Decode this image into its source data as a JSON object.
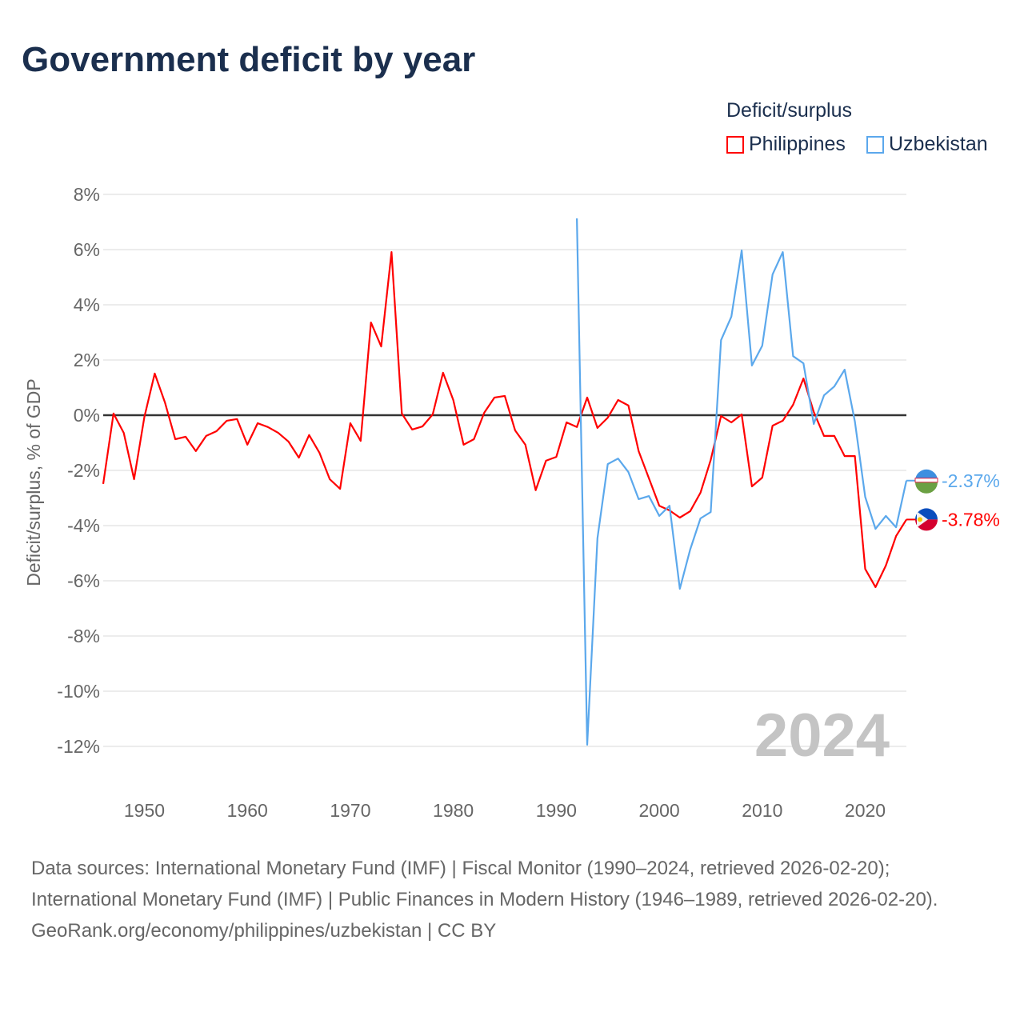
{
  "title": "Government deficit by year",
  "legend": {
    "title": "Deficit/surplus",
    "items": [
      {
        "name": "Philippines",
        "color": "#ff0000"
      },
      {
        "name": "Uzbekistan",
        "color": "#5ba8ec"
      }
    ]
  },
  "year_label": "2024",
  "end_labels": {
    "Uzbekistan": "-2.37%",
    "Philippines": "-3.78%"
  },
  "sources": {
    "line1": "Data sources: International Monetary Fund (IMF) | Fiscal Monitor (1990–2024, retrieved 2026-02-20); International Monetary Fund (IMF) | Public Finances in Modern History (1946–1989, retrieved 2026-02-20).",
    "line2": "GeoRank.org/economy/philippines/uzbekistan | CC BY"
  },
  "chart_data": {
    "type": "line",
    "title": "Government deficit by year",
    "xlabel": "",
    "ylabel": "Deficit/surplus, % of GDP",
    "xlim": [
      1946,
      2024
    ],
    "ylim": [
      -12,
      8
    ],
    "xticks": [
      1950,
      1960,
      1970,
      1980,
      1990,
      2000,
      2010,
      2020
    ],
    "yticks": [
      8,
      6,
      4,
      2,
      0,
      -2,
      -4,
      -6,
      -8,
      -10,
      -12
    ],
    "ytick_labels": [
      "8%",
      "6%",
      "4%",
      "2%",
      "0%",
      "-2%",
      "-4%",
      "-6%",
      "-8%",
      "-10%",
      "-12%"
    ],
    "grid": true,
    "legend_position": "top-right",
    "series": [
      {
        "name": "Philippines",
        "color": "#ff0000",
        "start_year": 1946,
        "values": [
          -2.49,
          0.06,
          -0.64,
          -2.32,
          -0.06,
          1.51,
          0.46,
          -0.87,
          -0.78,
          -1.3,
          -0.75,
          -0.58,
          -0.2,
          -0.14,
          -1.07,
          -0.29,
          -0.43,
          -0.64,
          -0.96,
          -1.54,
          -0.72,
          -1.36,
          -2.32,
          -2.67,
          -0.29,
          -0.93,
          3.36,
          2.49,
          5.91,
          0.06,
          -0.52,
          -0.41,
          0.03,
          1.54,
          0.55,
          -1.07,
          -0.87,
          0.09,
          0.64,
          0.7,
          -0.55,
          -1.07,
          -2.72,
          -1.65,
          -1.51,
          -0.26,
          -0.43,
          0.64,
          -0.46,
          -0.09,
          0.55,
          0.35,
          -1.3,
          -2.29,
          -3.28,
          -3.45,
          -3.71,
          -3.48,
          -2.81,
          -1.62,
          -0.03,
          -0.26,
          0.03,
          -2.58,
          -2.26,
          -0.38,
          -0.2,
          0.38,
          1.33,
          0.12,
          -0.75,
          -0.75,
          -1.48,
          -1.48,
          -5.57,
          -6.23,
          -5.45,
          -4.38,
          -3.78
        ]
      },
      {
        "name": "Uzbekistan",
        "color": "#5ba8ec",
        "start_year": 1992,
        "values": [
          7.13,
          -11.94,
          -4.46,
          -1.77,
          -1.57,
          -2.06,
          -3.04,
          -2.93,
          -3.65,
          -3.28,
          -6.29,
          -4.87,
          -3.74,
          -3.51,
          2.72,
          3.57,
          5.97,
          1.8,
          2.52,
          5.1,
          5.91,
          2.14,
          1.88,
          -0.32,
          0.72,
          1.04,
          1.65,
          -0.23,
          -2.96,
          -4.12,
          -3.65,
          -4.06,
          -2.37
        ]
      }
    ]
  }
}
